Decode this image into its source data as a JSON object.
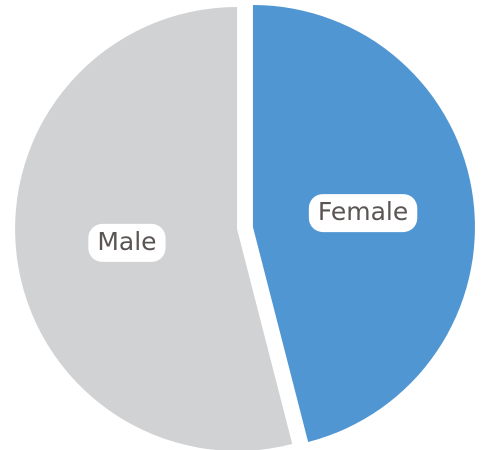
{
  "chart_data": {
    "type": "pie",
    "categories": [
      "Female",
      "Male"
    ],
    "values": [
      46,
      54
    ],
    "colors": [
      "#5096d3",
      "#d1d2d4"
    ],
    "start_angle": 0,
    "direction": "clockwise",
    "exploded": true
  }
}
